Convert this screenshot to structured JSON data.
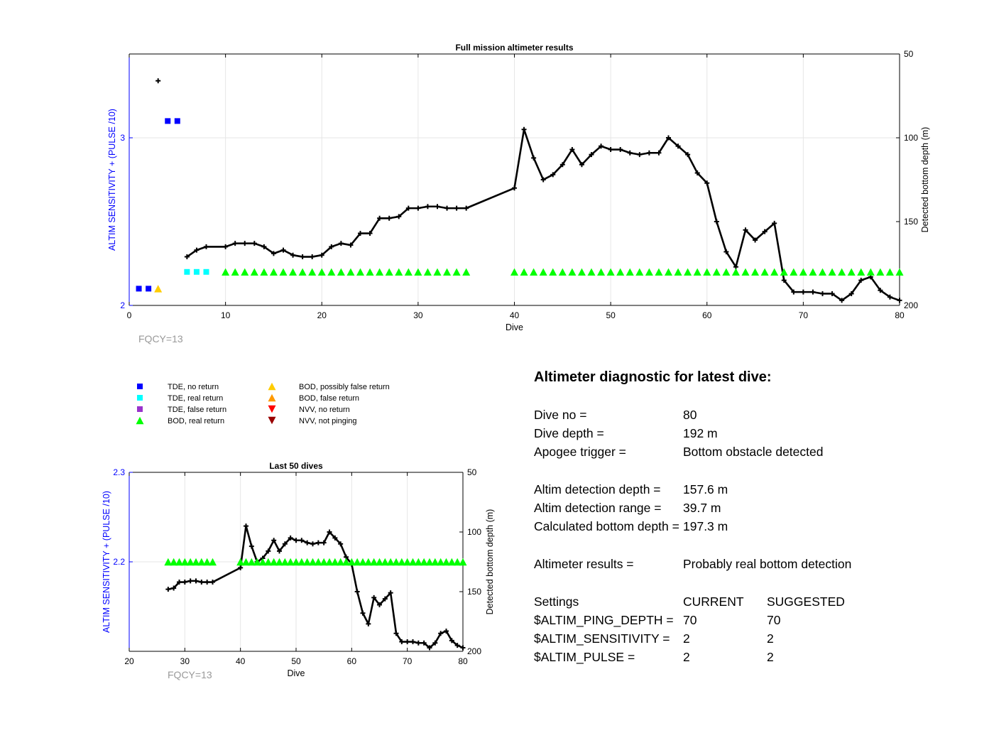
{
  "chart_data": [
    {
      "type": "line",
      "title": "Full mission altimeter results",
      "xlabel": "Dive",
      "ylabel_left": "ALTIM SENSITIVITY + (PULSE /10)",
      "ylabel_right": "Detected bottom depth (m)",
      "xlim": [
        0,
        80
      ],
      "ylim_left": [
        2,
        3.5
      ],
      "ylim_right_reversed": [
        50,
        200
      ],
      "xticks": [
        "0",
        "10",
        "20",
        "30",
        "40",
        "50",
        "60",
        "70",
        "80"
      ],
      "yticks_left": [
        "2",
        "3"
      ],
      "yticks_right": [
        "50",
        "100",
        "150",
        "200"
      ],
      "grid": true,
      "footnote": "FQCY=13",
      "series": [
        {
          "name": "Detected bottom depth",
          "axis": "right",
          "x": [
            3,
            6,
            7,
            8,
            10,
            11,
            12,
            13,
            14,
            15,
            16,
            17,
            18,
            19,
            20,
            21,
            22,
            23,
            24,
            25,
            26,
            27,
            28,
            29,
            30,
            31,
            32,
            33,
            34,
            35,
            40,
            41,
            42,
            43,
            44,
            45,
            46,
            47,
            48,
            49,
            50,
            51,
            52,
            53,
            54,
            55,
            56,
            57,
            58,
            59,
            60,
            61,
            62,
            63,
            64,
            65,
            66,
            67,
            68,
            69,
            70,
            71,
            72,
            73,
            74,
            75,
            76,
            77,
            78,
            79,
            80
          ],
          "y": [
            66,
            171,
            167,
            165,
            165,
            163,
            163,
            163,
            165,
            169,
            167,
            170,
            171,
            171,
            170,
            165,
            163,
            164,
            157,
            157,
            148,
            148,
            147,
            142,
            142,
            141,
            141,
            142,
            142,
            142,
            130,
            95,
            112,
            125,
            122,
            116,
            107,
            116,
            110,
            105,
            107,
            107,
            109,
            110,
            109,
            109,
            100,
            105,
            110,
            121,
            127,
            150,
            168,
            177,
            155,
            161,
            156,
            151,
            185,
            192,
            192,
            192,
            193,
            193,
            197,
            193,
            185,
            183,
            191,
            195,
            197
          ]
        },
        {
          "name": "TDE, no return",
          "axis": "left",
          "x": [
            1,
            2,
            4,
            5
          ],
          "y": [
            2.1,
            2.1,
            3.1,
            3.1
          ]
        },
        {
          "name": "TDE, real return",
          "axis": "left",
          "x": [
            6,
            7,
            8
          ],
          "y": [
            2.2,
            2.2,
            2.2
          ]
        },
        {
          "name": "BOD, possibly false return",
          "axis": "left",
          "x": [
            3
          ],
          "y": [
            2.1
          ]
        },
        {
          "name": "BOD, real return",
          "axis": "left",
          "x": [
            10,
            11,
            12,
            13,
            14,
            15,
            16,
            17,
            18,
            19,
            20,
            21,
            22,
            23,
            24,
            25,
            26,
            27,
            28,
            29,
            30,
            31,
            32,
            33,
            34,
            35,
            40,
            41,
            42,
            43,
            44,
            45,
            46,
            47,
            48,
            49,
            50,
            51,
            52,
            53,
            54,
            55,
            56,
            57,
            58,
            59,
            60,
            61,
            62,
            63,
            64,
            65,
            66,
            67,
            68,
            69,
            70,
            71,
            72,
            73,
            74,
            75,
            76,
            77,
            78,
            79,
            80
          ],
          "y_const": 2.2
        }
      ]
    },
    {
      "type": "line",
      "title": "Last 50 dives",
      "xlabel": "Dive",
      "ylabel_left": "ALTIM SENSITIVITY + (PULSE /10)",
      "ylabel_right": "Detected bottom depth (m)",
      "xlim": [
        20,
        80
      ],
      "ylim_left": [
        2.1,
        2.3
      ],
      "ylim_right_reversed": [
        50,
        200
      ],
      "xticks": [
        "20",
        "30",
        "40",
        "50",
        "60",
        "70",
        "80"
      ],
      "yticks_left": [
        "2.2",
        "2.3"
      ],
      "yticks_right": [
        "50",
        "100",
        "150",
        "200"
      ],
      "grid": true,
      "footnote": "FQCY=13",
      "series": [
        {
          "name": "Detected bottom depth",
          "axis": "right",
          "x": [
            27,
            28,
            29,
            30,
            31,
            32,
            33,
            34,
            35,
            40,
            41,
            42,
            43,
            44,
            45,
            46,
            47,
            48,
            49,
            50,
            51,
            52,
            53,
            54,
            55,
            56,
            57,
            58,
            59,
            60,
            61,
            62,
            63,
            64,
            65,
            66,
            67,
            68,
            69,
            70,
            71,
            72,
            73,
            74,
            75,
            76,
            77,
            78,
            79,
            80
          ],
          "y": [
            148,
            147,
            142,
            142,
            141,
            141,
            142,
            142,
            142,
            130,
            95,
            112,
            125,
            122,
            116,
            107,
            116,
            110,
            105,
            107,
            107,
            109,
            110,
            109,
            109,
            100,
            105,
            110,
            121,
            127,
            150,
            168,
            177,
            155,
            161,
            156,
            151,
            185,
            192,
            192,
            192,
            193,
            193,
            197,
            193,
            185,
            183,
            191,
            195,
            197
          ]
        },
        {
          "name": "BOD, real return",
          "axis": "left",
          "x": [
            27,
            28,
            29,
            30,
            31,
            32,
            33,
            34,
            35,
            40,
            41,
            42,
            43,
            44,
            45,
            46,
            47,
            48,
            49,
            50,
            51,
            52,
            53,
            54,
            55,
            56,
            57,
            58,
            59,
            60,
            61,
            62,
            63,
            64,
            65,
            66,
            67,
            68,
            69,
            70,
            71,
            72,
            73,
            74,
            75,
            76,
            77,
            78,
            79,
            80
          ],
          "y_const": 2.2
        }
      ]
    }
  ],
  "legend": [
    {
      "label": "TDE, no return",
      "marker": "square",
      "color": "#0000ff"
    },
    {
      "label": "TDE, real return",
      "marker": "square",
      "color": "#00ffff"
    },
    {
      "label": "TDE, false return",
      "marker": "square",
      "color": "#9933cc"
    },
    {
      "label": "BOD, real return",
      "marker": "triangle-up",
      "color": "#00ff00"
    },
    {
      "label": "BOD, possibly false return",
      "marker": "triangle-up",
      "color": "#ffcc00"
    },
    {
      "label": "BOD, false return",
      "marker": "triangle-up",
      "color": "#ff9900"
    },
    {
      "label": "NVV, no return",
      "marker": "triangle-down",
      "color": "#ff0000"
    },
    {
      "label": "NVV, not pinging",
      "marker": "triangle-down",
      "color": "#990000"
    }
  ],
  "colors": {
    "left_axis": "#0000ff",
    "bottom_depth_line": "#000000",
    "grid": "#e6e6e6",
    "footnote": "#999999"
  },
  "diagnostic": {
    "title": "Altimeter diagnostic for latest dive:",
    "rows": [
      {
        "label": "Dive no =",
        "value": "80"
      },
      {
        "label": "Dive depth =",
        "value": "192 m"
      },
      {
        "label": "Apogee trigger =",
        "value": "Bottom obstacle detected"
      },
      {
        "label": "Altim detection depth =",
        "value": "157.6 m"
      },
      {
        "label": "Altim detection range =",
        "value": "39.7 m"
      },
      {
        "label": "Calculated bottom depth =",
        "value": "197.3 m"
      },
      {
        "label": "Altimeter results =",
        "value": "Probably real bottom detection"
      }
    ],
    "settings_header": {
      "label": "Settings",
      "current": "CURRENT",
      "suggested": "SUGGESTED"
    },
    "settings": [
      {
        "label": "$ALTIM_PING_DEPTH =",
        "current": "70",
        "suggested": "70"
      },
      {
        "label": "$ALTIM_SENSITIVITY =",
        "current": "2",
        "suggested": "2"
      },
      {
        "label": "$ALTIM_PULSE =",
        "current": "2",
        "suggested": "2"
      }
    ]
  }
}
